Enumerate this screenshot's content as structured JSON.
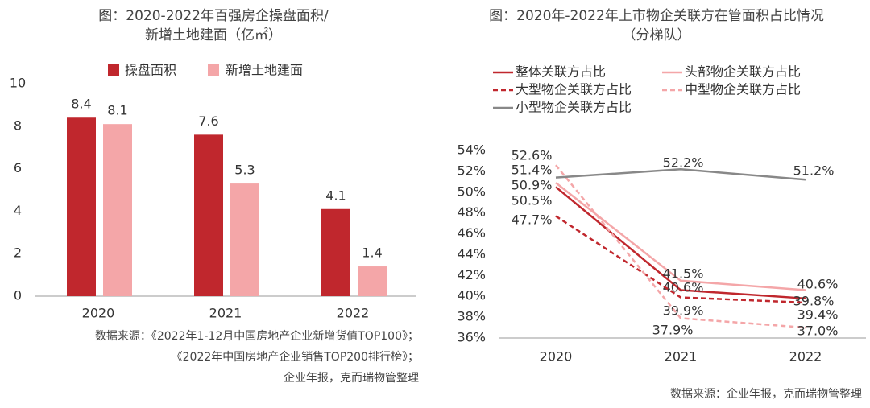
{
  "chart_data": [
    {
      "type": "bar",
      "title": [
        "图：2020-2022年百强房企操盘面积/",
        "新增土地建面（亿㎡）"
      ],
      "categories": [
        "2020",
        "2021",
        "2022"
      ],
      "series": [
        {
          "name": "操盘面积",
          "color": "#c0272d",
          "values": [
            8.4,
            7.6,
            4.1
          ]
        },
        {
          "name": "新增土地建面",
          "color": "#f4a6a8",
          "values": [
            8.1,
            5.3,
            1.4
          ]
        }
      ],
      "ylim": [
        0,
        10
      ],
      "yticks": [
        0,
        2,
        4,
        6,
        8,
        10
      ],
      "grid": false,
      "source": [
        "数据来源：《2022年1-12月中国房地产企业新增货值TOP100》；",
        "《2022年中国房地产企业销售TOP200排行榜》；",
        "企业年报，克而瑞物管整理"
      ]
    },
    {
      "type": "line",
      "title": [
        "图：2020年-2022年上市物企关联方在管面积占比情况",
        "（分梯队）"
      ],
      "categories": [
        "2020",
        "2021",
        "2022"
      ],
      "series": [
        {
          "name": "整体关联方占比",
          "color": "#c0272d",
          "style": "solid",
          "values": [
            50.5,
            40.6,
            39.8
          ],
          "value_labels": [
            "50.5%",
            "40.6%",
            "39.8%"
          ]
        },
        {
          "name": "头部物企关联方占比",
          "color": "#f4a6a8",
          "style": "solid",
          "values": [
            50.9,
            41.5,
            40.6
          ],
          "value_labels": [
            "50.9%",
            "41.5%",
            "40.6%"
          ]
        },
        {
          "name": "大型物企关联方占比",
          "color": "#c0272d",
          "style": "dashed",
          "values": [
            47.7,
            39.9,
            39.4
          ],
          "value_labels": [
            "47.7%",
            "39.9%",
            "39.4%"
          ]
        },
        {
          "name": "中型物企关联方占比",
          "color": "#f4a6a8",
          "style": "dashed",
          "values": [
            52.6,
            37.9,
            37.0
          ],
          "value_labels": [
            "52.6%",
            "37.9%",
            "37.0%"
          ]
        },
        {
          "name": "小型物企关联方占比",
          "color": "#888888",
          "style": "solid",
          "values": [
            51.4,
            52.2,
            51.2
          ],
          "value_labels": [
            "51.4%",
            "52.2%",
            "51.2%"
          ]
        }
      ],
      "ylim": [
        36,
        54
      ],
      "yticks": [
        {
          "value": 36,
          "label": "36%"
        },
        {
          "value": 38,
          "label": "38%"
        },
        {
          "value": 40,
          "label": "40%"
        },
        {
          "value": 42,
          "label": "42%"
        },
        {
          "value": 44,
          "label": "44%"
        },
        {
          "value": 46,
          "label": "46%"
        },
        {
          "value": 48,
          "label": "48%"
        },
        {
          "value": 50,
          "label": "50%"
        },
        {
          "value": 52,
          "label": "52%"
        },
        {
          "value": 54,
          "label": "54%"
        }
      ],
      "grid": false,
      "source": [
        "数据来源：企业年报，克而瑞物管整理"
      ]
    }
  ]
}
